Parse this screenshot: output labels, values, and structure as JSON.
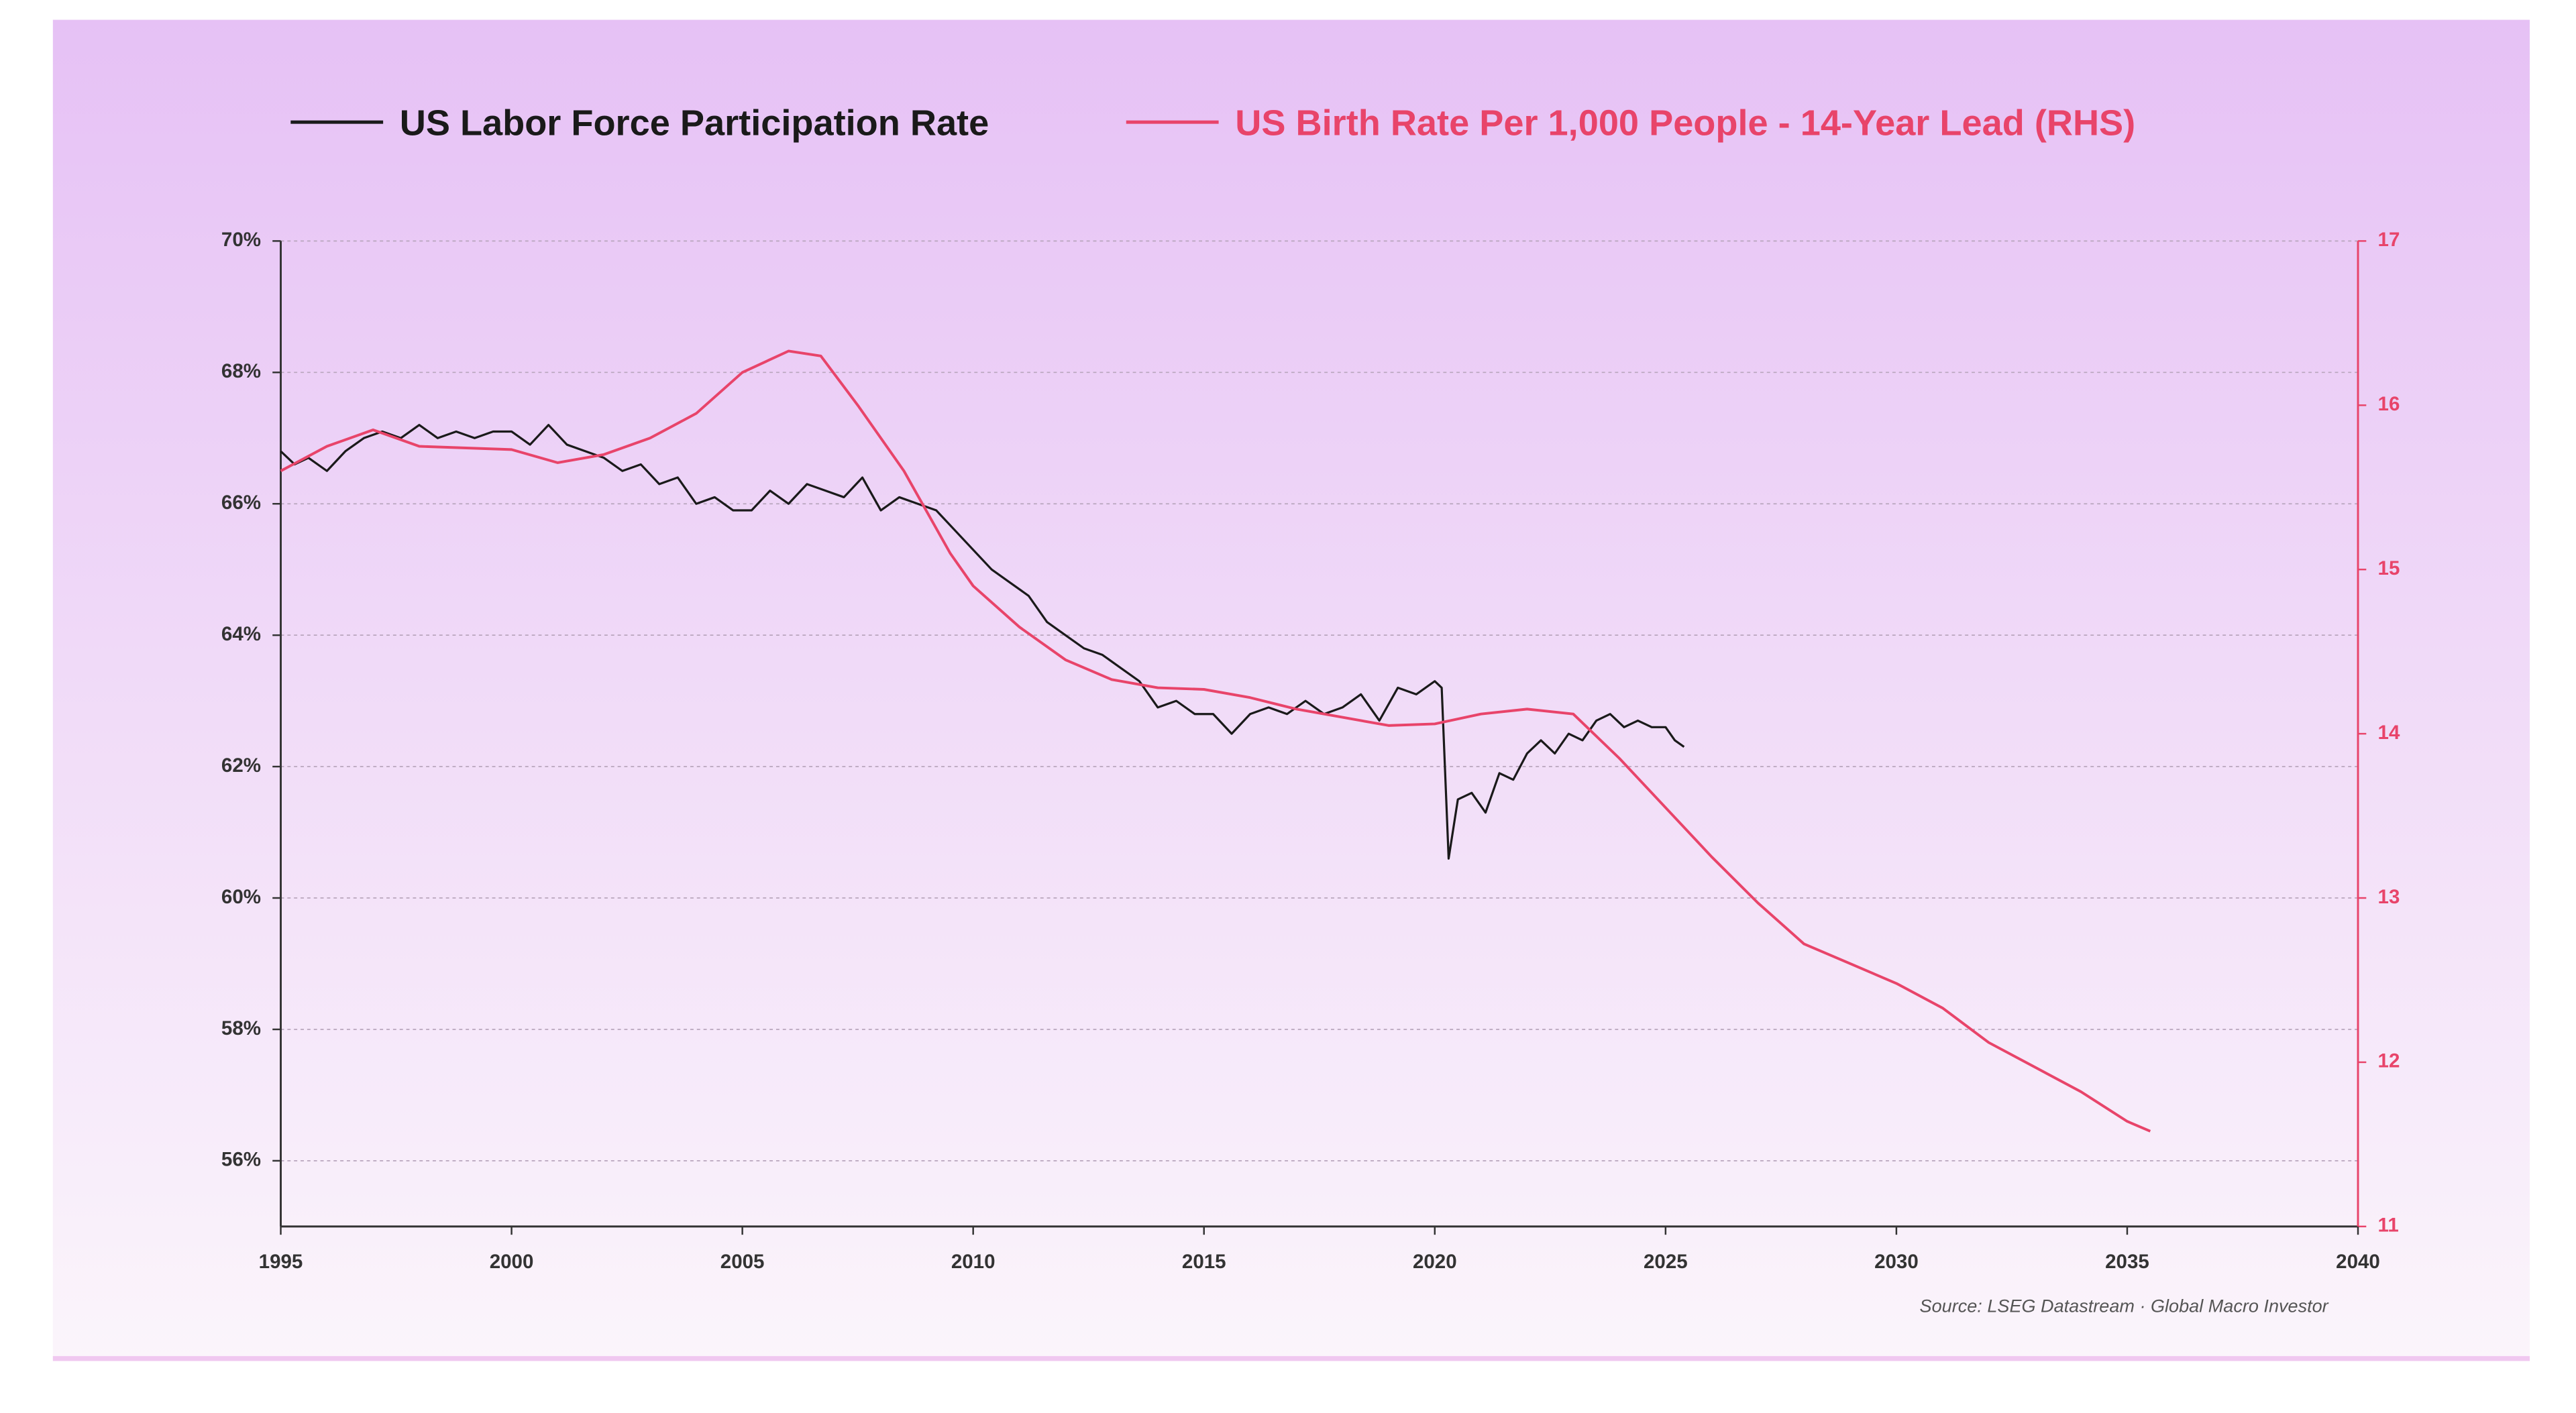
{
  "chart_data": {
    "type": "line",
    "source": "Source: LSEG Datastream · Global Macro Investor",
    "xlim": [
      1995,
      2040
    ],
    "xticks": [
      1995,
      2000,
      2005,
      2010,
      2015,
      2020,
      2025,
      2030,
      2035,
      2040
    ],
    "ylim": [
      55,
      70
    ],
    "yticks": [
      {
        "value": 56,
        "label": "56%"
      },
      {
        "value": 58,
        "label": "58%"
      },
      {
        "value": 60,
        "label": "60%"
      },
      {
        "value": 62,
        "label": "62%"
      },
      {
        "value": 64,
        "label": "64%"
      },
      {
        "value": 66,
        "label": "66%"
      },
      {
        "value": 68,
        "label": "68%"
      },
      {
        "value": 70,
        "label": "70%"
      }
    ],
    "y2lim": [
      11,
      17
    ],
    "y2ticks": [
      11,
      12,
      13,
      14,
      15,
      16,
      17
    ],
    "grid": true,
    "legend": "top",
    "series": [
      {
        "name": "US Labor Force Participation Rate",
        "color": "#1a1a1a",
        "axis": "y",
        "x": [
          1995,
          1995.3,
          1995.6,
          1996,
          1996.4,
          1996.8,
          1997.2,
          1997.6,
          1998,
          1998.4,
          1998.8,
          1999.2,
          1999.6,
          2000,
          2000.4,
          2000.8,
          2001.2,
          2001.6,
          2002,
          2002.4,
          2002.8,
          2003.2,
          2003.6,
          2004,
          2004.4,
          2004.8,
          2005.2,
          2005.6,
          2006,
          2006.4,
          2006.8,
          2007.2,
          2007.6,
          2008,
          2008.4,
          2008.8,
          2009.2,
          2009.6,
          2010,
          2010.4,
          2010.8,
          2011.2,
          2011.6,
          2012,
          2012.4,
          2012.8,
          2013.2,
          2013.6,
          2014,
          2014.4,
          2014.8,
          2015.2,
          2015.6,
          2016,
          2016.4,
          2016.8,
          2017.2,
          2017.6,
          2018,
          2018.4,
          2018.8,
          2019.2,
          2019.6,
          2020,
          2020.15,
          2020.3,
          2020.5,
          2020.8,
          2021.1,
          2021.4,
          2021.7,
          2022,
          2022.3,
          2022.6,
          2022.9,
          2023.2,
          2023.5,
          2023.8,
          2024.1,
          2024.4,
          2024.7,
          2025,
          2025.2,
          2025.4
        ],
        "values": [
          66.8,
          66.6,
          66.7,
          66.5,
          66.8,
          67.0,
          67.1,
          67.0,
          67.2,
          67.0,
          67.1,
          67.0,
          67.1,
          67.1,
          66.9,
          67.2,
          66.9,
          66.8,
          66.7,
          66.5,
          66.6,
          66.3,
          66.4,
          66.0,
          66.1,
          65.9,
          65.9,
          66.2,
          66.0,
          66.3,
          66.2,
          66.1,
          66.4,
          65.9,
          66.1,
          66.0,
          65.9,
          65.6,
          65.3,
          65.0,
          64.8,
          64.6,
          64.2,
          64.0,
          63.8,
          63.7,
          63.5,
          63.3,
          62.9,
          63.0,
          62.8,
          62.8,
          62.5,
          62.8,
          62.9,
          62.8,
          63.0,
          62.8,
          62.9,
          63.1,
          62.7,
          63.2,
          63.1,
          63.3,
          63.2,
          60.6,
          61.5,
          61.6,
          61.3,
          61.9,
          61.8,
          62.2,
          62.4,
          62.2,
          62.5,
          62.4,
          62.7,
          62.8,
          62.6,
          62.7,
          62.6,
          62.6,
          62.4,
          62.3
        ]
      },
      {
        "name": "US Birth Rate Per 1,000 People - 14-Year Lead (RHS)",
        "color": "#e8446a",
        "axis": "y2",
        "x": [
          1995,
          1996,
          1997,
          1998,
          2000,
          2001,
          2002,
          2003,
          2004,
          2005,
          2006,
          2006.7,
          2007.5,
          2008.5,
          2009.5,
          2010,
          2011,
          2012,
          2013,
          2014,
          2015,
          2016,
          2017,
          2018,
          2019,
          2020,
          2021,
          2022,
          2023,
          2024,
          2025,
          2026,
          2027,
          2028,
          2029,
          2030,
          2031,
          2032,
          2033,
          2034,
          2035,
          2035.5
        ],
        "values": [
          15.6,
          15.75,
          15.85,
          15.75,
          15.73,
          15.65,
          15.7,
          15.8,
          15.95,
          16.2,
          16.33,
          16.3,
          16.0,
          15.6,
          15.1,
          14.9,
          14.65,
          14.45,
          14.33,
          14.28,
          14.27,
          14.22,
          14.15,
          14.1,
          14.05,
          14.06,
          14.12,
          14.15,
          14.12,
          13.85,
          13.55,
          13.25,
          12.97,
          12.72,
          12.6,
          12.48,
          12.33,
          12.12,
          11.97,
          11.82,
          11.64,
          11.58
        ]
      }
    ]
  }
}
